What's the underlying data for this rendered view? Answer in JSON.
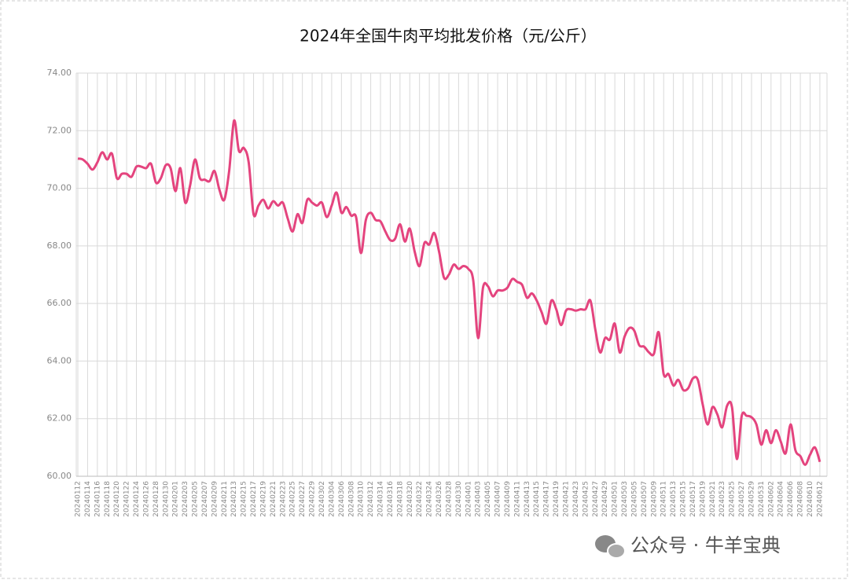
{
  "chart_data": {
    "type": "line",
    "title": "2024年全国牛肉平均批发价格（元/公斤）",
    "categories": [
      "20240112",
      null,
      "20240114",
      null,
      "20240116",
      null,
      "20240118",
      null,
      "20240120",
      null,
      "20240122",
      null,
      "20240124",
      null,
      "20240126",
      null,
      "20240128",
      null,
      "20240130",
      null,
      "20240201",
      null,
      "20240203",
      null,
      "20240205",
      null,
      "20240207",
      null,
      "20240209",
      null,
      "20240211",
      null,
      "20240213",
      null,
      "20240215",
      null,
      "20240217",
      null,
      "20240219",
      null,
      "20240221",
      null,
      "20240223",
      null,
      "20240225",
      null,
      "20240227",
      null,
      "20240229",
      null,
      "20240302",
      null,
      "20240304",
      null,
      "20240306",
      null,
      "20240308",
      null,
      "20240310",
      null,
      "20240312",
      null,
      "20240314",
      null,
      "20240316",
      null,
      "20240318",
      null,
      "20240320",
      null,
      "20240322",
      null,
      "20240324",
      null,
      "20240326",
      null,
      "20240328",
      null,
      "20240330",
      null,
      "20240401",
      null,
      "20240403",
      null,
      "20240405",
      null,
      "20240407",
      null,
      "20240409",
      null,
      "20240411",
      null,
      "20240413",
      null,
      "20240415",
      null,
      "20240417",
      null,
      "20240419",
      null,
      "20240421",
      null,
      "20240423",
      null,
      "20240425",
      null,
      "20240427",
      null,
      "20240429",
      null,
      "20240501",
      null,
      "20240503",
      null,
      "20240505",
      null,
      "20240507",
      null,
      "20240509",
      null,
      "20240511",
      null,
      "20240513",
      null,
      "20240515",
      null,
      "20240517",
      null,
      "20240519",
      null,
      "20240521",
      null,
      "20240523",
      null,
      "20240525",
      null,
      "20240527",
      null,
      "20240529",
      null,
      "20240531",
      null,
      "20240602",
      null,
      "20240604",
      null,
      "20240606",
      null,
      "20240608",
      null,
      "20240610",
      null,
      "20240612"
    ],
    "series": [
      {
        "color": "#e4447e",
        "values": [
          71.03,
          71.0,
          70.85,
          70.65,
          70.9,
          71.25,
          71.0,
          71.2,
          70.35,
          70.5,
          70.5,
          70.4,
          70.75,
          70.75,
          70.7,
          70.85,
          70.2,
          70.35,
          70.8,
          70.7,
          69.9,
          70.7,
          69.5,
          70.1,
          71.0,
          70.35,
          70.3,
          70.25,
          70.6,
          69.95,
          69.6,
          70.6,
          72.35,
          71.3,
          71.4,
          70.9,
          69.1,
          69.4,
          69.6,
          69.3,
          69.55,
          69.4,
          69.5,
          68.95,
          68.5,
          69.1,
          68.8,
          69.6,
          69.5,
          69.4,
          69.5,
          69.0,
          69.4,
          69.85,
          69.15,
          69.35,
          69.05,
          69.0,
          67.75,
          68.9,
          69.15,
          68.9,
          68.85,
          68.5,
          68.2,
          68.25,
          68.75,
          68.15,
          68.6,
          67.8,
          67.3,
          68.1,
          68.05,
          68.45,
          67.8,
          66.9,
          67.0,
          67.35,
          67.2,
          67.3,
          67.2,
          66.8,
          64.8,
          66.55,
          66.6,
          66.25,
          66.45,
          66.45,
          66.55,
          66.85,
          66.75,
          66.65,
          66.2,
          66.35,
          66.1,
          65.7,
          65.3,
          66.1,
          65.8,
          65.25,
          65.75,
          65.8,
          65.75,
          65.8,
          65.8,
          66.1,
          65.1,
          64.3,
          64.8,
          64.75,
          65.3,
          64.3,
          64.85,
          65.15,
          65.05,
          64.55,
          64.5,
          64.3,
          64.25,
          65.0,
          63.55,
          63.55,
          63.15,
          63.35,
          63.0,
          63.05,
          63.4,
          63.35,
          62.5,
          61.8,
          62.4,
          62.15,
          61.7,
          62.45,
          62.4,
          60.6,
          62.1,
          62.1,
          62.05,
          61.8,
          61.1,
          61.6,
          61.15,
          61.6,
          61.2,
          60.8,
          61.8,
          60.9,
          60.7,
          60.4,
          60.75,
          61.0,
          60.5
        ]
      }
    ],
    "ylim": [
      60,
      74
    ],
    "yticks": [
      {
        "value": 60,
        "label": "60.00"
      },
      {
        "value": 62,
        "label": "62.00"
      },
      {
        "value": 64,
        "label": "64.00"
      },
      {
        "value": 66,
        "label": "66.00"
      },
      {
        "value": 68,
        "label": "68.00"
      },
      {
        "value": 70,
        "label": "70.00"
      },
      {
        "value": 72,
        "label": "72.00"
      },
      {
        "value": 74,
        "label": "74.00"
      }
    ],
    "grid": true,
    "watermark": "公众号 · 牛羊宝典"
  }
}
